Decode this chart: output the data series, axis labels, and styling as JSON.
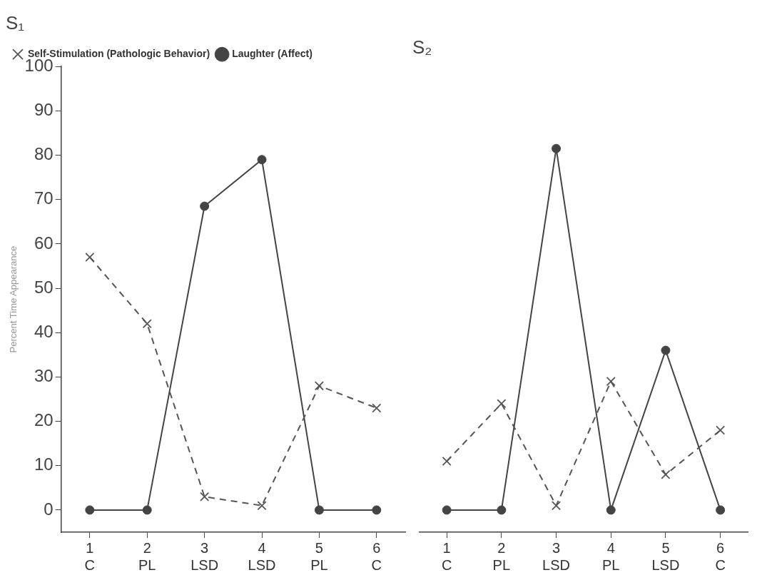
{
  "chart_data": [
    {
      "type": "line",
      "title": "S₁",
      "ylabel": "Percent Time Appearance",
      "categories": [
        "1\nC",
        "2\nPL",
        "3\nLSD",
        "4\nLSD",
        "5\nPL",
        "6\nC"
      ],
      "ylim": [
        -5,
        100
      ],
      "yticks": [
        0,
        10,
        20,
        30,
        40,
        50,
        60,
        70,
        80,
        90,
        100
      ],
      "grid": false,
      "legend": "top left",
      "series": [
        {
          "name": "Self-Stimulation (Pathologic Behavior)",
          "color": "#555555",
          "values": [
            57,
            42,
            3,
            1,
            28,
            23
          ],
          "marker": "cross",
          "line_style": "dashed"
        },
        {
          "name": "Laughter (Affect)",
          "color": "#444444",
          "values": [
            0,
            0,
            68.5,
            79,
            0,
            0
          ],
          "marker": "circle",
          "line_style": "solid"
        }
      ]
    },
    {
      "type": "line",
      "title": "S₂",
      "categories": [
        "1\nC",
        "2\nPL",
        "3\nLSD",
        "4\nPL",
        "5\nLSD",
        "6\nC"
      ],
      "ylim": [
        -5,
        100
      ],
      "yticks": [
        0,
        10,
        20,
        30,
        40,
        50,
        60,
        70,
        80,
        90,
        100
      ],
      "grid": false,
      "tick_labels": "x",
      "series": [
        {
          "color": "#555555",
          "values": [
            11,
            24,
            1,
            29,
            8,
            18
          ],
          "marker": "cross",
          "line_style": "dashed"
        },
        {
          "color": "#444444",
          "values": [
            0,
            0,
            81.5,
            0,
            36,
            0
          ],
          "marker": "circle",
          "line_style": "solid"
        }
      ]
    }
  ]
}
